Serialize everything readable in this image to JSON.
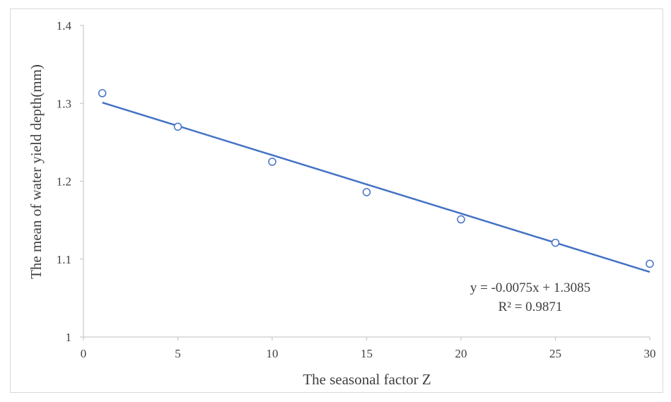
{
  "chart_data": {
    "type": "scatter",
    "title": "",
    "xlabel": "The seasonal factor Z",
    "ylabel": "The mean of  water yield depth(mm)",
    "xlim": [
      0,
      30
    ],
    "ylim": [
      1,
      1.4
    ],
    "x_ticks": [
      "0",
      "5",
      "10",
      "15",
      "20",
      "25",
      "30"
    ],
    "y_ticks": [
      "1",
      "1.1",
      "1.2",
      "1.3",
      "1.4"
    ],
    "grid": false,
    "legend": "none",
    "series": [
      {
        "x": [
          1,
          5,
          10,
          15,
          20,
          25,
          30
        ],
        "y": [
          1.313,
          1.27,
          1.225,
          1.186,
          1.151,
          1.121,
          1.094
        ],
        "marker": "open-circle",
        "color": "#4472c4"
      }
    ],
    "trendline": {
      "type": "linear",
      "slope": -0.0075,
      "intercept": 1.3085,
      "x_range": [
        1,
        30
      ],
      "color": "#4472c4"
    },
    "annotations": {
      "equation": "y = -0.0075x + 1.3085",
      "r_squared": "R² = 0.9871"
    },
    "colors": {
      "series": "#4472c4",
      "axis": "#bfbfbf",
      "text": "#404040"
    }
  }
}
